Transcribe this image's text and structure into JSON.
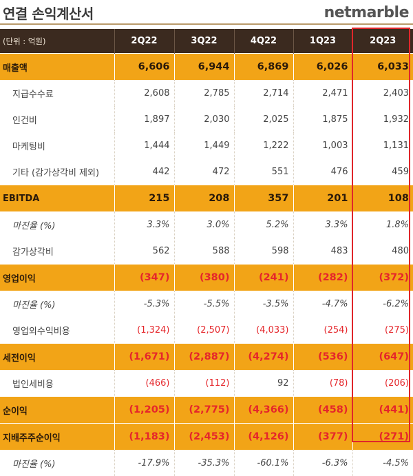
{
  "header": {
    "title": "연결 손익계산서",
    "brand": "netmarble"
  },
  "table": {
    "unit": "(단위 : 억원)",
    "columns": [
      "2Q22",
      "3Q22",
      "4Q22",
      "1Q23",
      "2Q23"
    ],
    "rows": [
      {
        "label": "매출액",
        "style": "highlight",
        "values": [
          {
            "t": "6,606"
          },
          {
            "t": "6,944"
          },
          {
            "t": "6,869"
          },
          {
            "t": "6,026"
          },
          {
            "t": "6,033"
          }
        ]
      },
      {
        "label": "지급수수료",
        "style": "normal",
        "values": [
          {
            "t": "2,608"
          },
          {
            "t": "2,785"
          },
          {
            "t": "2,714"
          },
          {
            "t": "2,471"
          },
          {
            "t": "2,403"
          }
        ]
      },
      {
        "label": "인건비",
        "style": "normal",
        "values": [
          {
            "t": "1,897"
          },
          {
            "t": "2,030"
          },
          {
            "t": "2,025"
          },
          {
            "t": "1,875"
          },
          {
            "t": "1,932"
          }
        ]
      },
      {
        "label": "마케팅비",
        "style": "normal",
        "values": [
          {
            "t": "1,444"
          },
          {
            "t": "1,449"
          },
          {
            "t": "1,222"
          },
          {
            "t": "1,003"
          },
          {
            "t": "1,131"
          }
        ]
      },
      {
        "label": "기타 (감가상각비 제외)",
        "style": "normal",
        "values": [
          {
            "t": "442"
          },
          {
            "t": "472"
          },
          {
            "t": "551"
          },
          {
            "t": "476"
          },
          {
            "t": "459"
          }
        ]
      },
      {
        "label": "EBITDA",
        "style": "highlight",
        "values": [
          {
            "t": "215"
          },
          {
            "t": "208"
          },
          {
            "t": "357"
          },
          {
            "t": "201"
          },
          {
            "t": "108"
          }
        ]
      },
      {
        "label": "마진율 (%)",
        "style": "pct",
        "values": [
          {
            "t": "3.3%"
          },
          {
            "t": "3.0%"
          },
          {
            "t": "5.2%"
          },
          {
            "t": "3.3%"
          },
          {
            "t": "1.8%"
          }
        ]
      },
      {
        "label": "감가상각비",
        "style": "normal",
        "values": [
          {
            "t": "562"
          },
          {
            "t": "588"
          },
          {
            "t": "598"
          },
          {
            "t": "483"
          },
          {
            "t": "480"
          }
        ]
      },
      {
        "label": "영업이익",
        "style": "highlight",
        "values": [
          {
            "t": "(347)",
            "neg": true
          },
          {
            "t": "(380)",
            "neg": true
          },
          {
            "t": "(241)",
            "neg": true
          },
          {
            "t": "(282)",
            "neg": true
          },
          {
            "t": "(372)",
            "neg": true
          }
        ]
      },
      {
        "label": "마진율 (%)",
        "style": "pct",
        "values": [
          {
            "t": "-5.3%"
          },
          {
            "t": "-5.5%"
          },
          {
            "t": "-3.5%"
          },
          {
            "t": "-4.7%"
          },
          {
            "t": "-6.2%"
          }
        ]
      },
      {
        "label": "영업외수익비용",
        "style": "normal",
        "values": [
          {
            "t": "(1,324)",
            "neg": true
          },
          {
            "t": "(2,507)",
            "neg": true
          },
          {
            "t": "(4,033)",
            "neg": true
          },
          {
            "t": "(254)",
            "neg": true
          },
          {
            "t": "(275)",
            "neg": true
          }
        ]
      },
      {
        "label": "세전이익",
        "style": "highlight",
        "values": [
          {
            "t": "(1,671)",
            "neg": true
          },
          {
            "t": "(2,887)",
            "neg": true
          },
          {
            "t": "(4,274)",
            "neg": true
          },
          {
            "t": "(536)",
            "neg": true
          },
          {
            "t": "(647)",
            "neg": true
          }
        ]
      },
      {
        "label": "법인세비용",
        "style": "normal",
        "values": [
          {
            "t": "(466)",
            "neg": true
          },
          {
            "t": "(112)",
            "neg": true
          },
          {
            "t": "92"
          },
          {
            "t": "(78)",
            "neg": true
          },
          {
            "t": "(206)",
            "neg": true
          }
        ]
      },
      {
        "label": "순이익",
        "style": "highlight",
        "values": [
          {
            "t": "(1,205)",
            "neg": true
          },
          {
            "t": "(2,775)",
            "neg": true
          },
          {
            "t": "(4,366)",
            "neg": true
          },
          {
            "t": "(458)",
            "neg": true
          },
          {
            "t": "(441)",
            "neg": true
          }
        ]
      },
      {
        "label": "지배주주순이익",
        "style": "highlight",
        "values": [
          {
            "t": "(1,183)",
            "neg": true
          },
          {
            "t": "(2,453)",
            "neg": true
          },
          {
            "t": "(4,126)",
            "neg": true
          },
          {
            "t": "(377)",
            "neg": true
          },
          {
            "t": "(271)",
            "neg": true
          }
        ]
      },
      {
        "label": "마진율 (%)",
        "style": "pct",
        "values": [
          {
            "t": "-17.9%"
          },
          {
            "t": "-35.3%"
          },
          {
            "t": "-60.1%"
          },
          {
            "t": "-6.3%"
          },
          {
            "t": "-4.5%"
          }
        ]
      }
    ]
  },
  "colors": {
    "header_bg": "#3b2a1f",
    "highlight_bg": "#f2a417",
    "negative": "#e5262b",
    "focus_box": "#e0262b"
  }
}
